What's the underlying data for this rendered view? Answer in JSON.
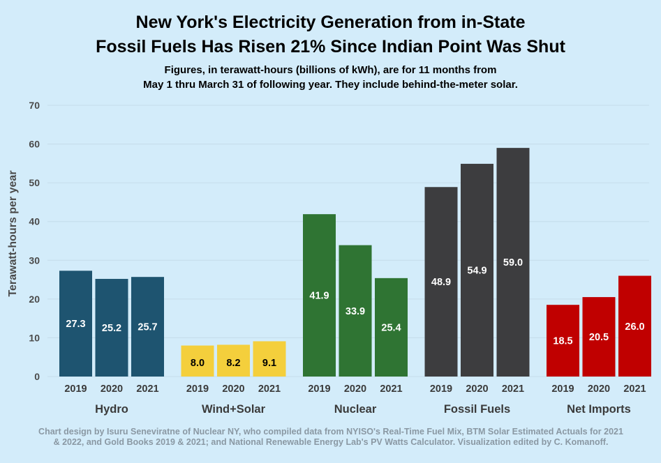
{
  "chart_data": {
    "type": "bar",
    "title": [
      "New York's Electricity Generation from in-State",
      "Fossil Fuels Has Risen 21% Since Indian Point Was Shut"
    ],
    "subtitle": [
      "Figures, in terawatt-hours (billions of kWh), are for 11 months from",
      "May 1 thru March 31 of following year. They include behind-the-meter solar."
    ],
    "ylabel": "Terawatt-hours per year",
    "ylim": [
      0,
      70
    ],
    "yticks": [
      0,
      10,
      20,
      30,
      40,
      50,
      60,
      70
    ],
    "grid": true,
    "years": [
      "2019",
      "2020",
      "2021"
    ],
    "groups": [
      {
        "name": "Hydro",
        "color": "#1e5470",
        "label_color": "#ffffff",
        "values": [
          27.3,
          25.2,
          25.7
        ],
        "labels": [
          "27.3",
          "25.2",
          "25.7"
        ]
      },
      {
        "name": "Wind+Solar",
        "color": "#f4cf3c",
        "label_color": "#000000",
        "values": [
          8.0,
          8.2,
          9.1
        ],
        "labels": [
          "8.0",
          "8.2",
          "9.1"
        ]
      },
      {
        "name": "Nuclear",
        "color": "#2f7433",
        "label_color": "#ffffff",
        "values": [
          41.9,
          33.9,
          25.4
        ],
        "labels": [
          "41.9",
          "33.9",
          "25.4"
        ]
      },
      {
        "name": "Fossil Fuels",
        "color": "#3d3d3f",
        "label_color": "#ffffff",
        "values": [
          48.9,
          54.9,
          59.0
        ],
        "labels": [
          "48.9",
          "54.9",
          "59.0"
        ]
      },
      {
        "name": "Net Imports",
        "color": "#c00000",
        "label_color": "#ffffff",
        "values": [
          18.5,
          20.5,
          26.0
        ],
        "labels": [
          "18.5",
          "20.5",
          "26.0"
        ]
      }
    ]
  },
  "footnote": [
    "Chart design by Isuru Seneviratne of Nuclear NY, who compiled data from NYISO's Real-Time Fuel Mix, BTM Solar Estimated Actuals for 2021",
    "& 2022, and Gold Books 2019 & 2021; and National Renewable Energy Lab's PV Watts Calculator. Visualization edited by C. Komanoff."
  ]
}
